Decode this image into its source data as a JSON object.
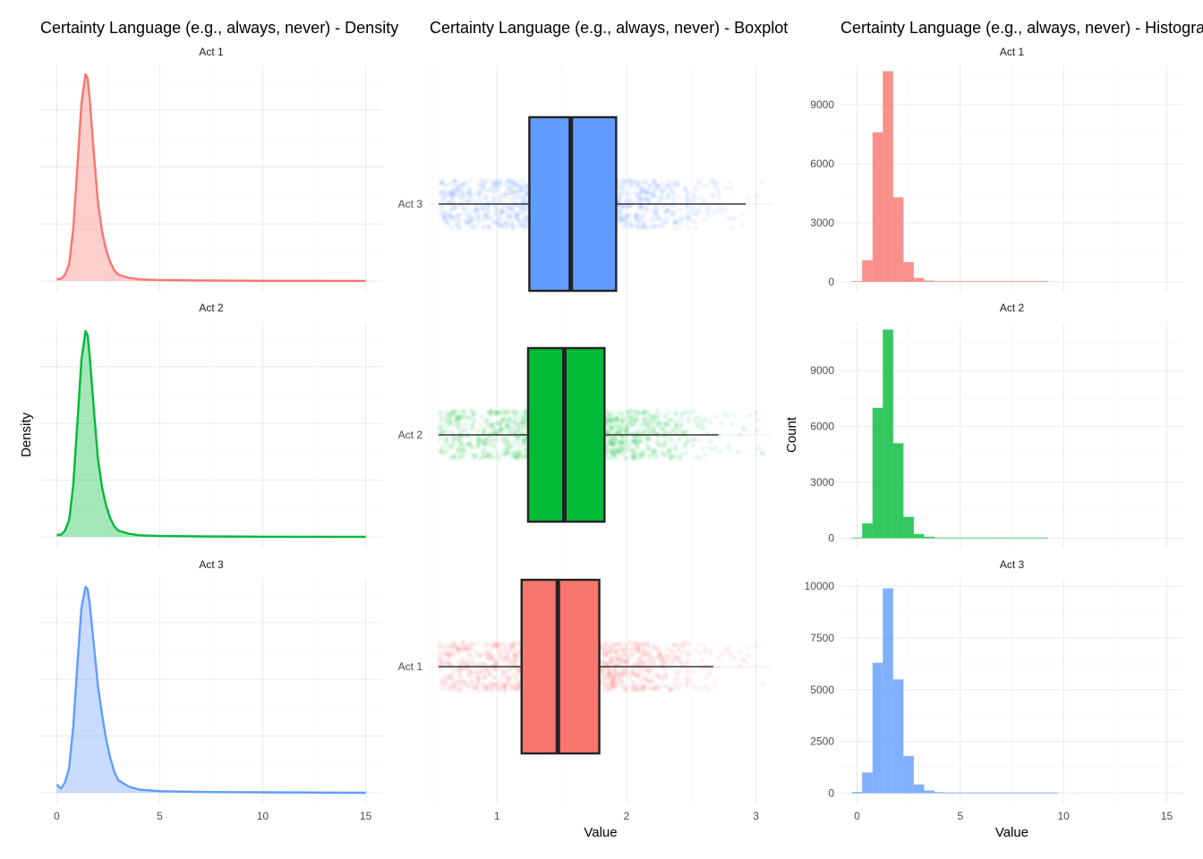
{
  "colors": {
    "act1": "#F8766D",
    "act2": "#00BA38",
    "act3": "#619CFF"
  },
  "titles": {
    "density": "Certainty Language (e.g., always, never) - Density",
    "boxplot": "Certainty Language (e.g., always, never) - Boxplot",
    "histogram": "Certainty Language (e.g., always, never) - Histogram"
  },
  "chart_data": [
    {
      "type": "area",
      "title": "Certainty Language (e.g., always, never) - Density",
      "ylabel": "Density",
      "xlabel": "",
      "xlim": [
        0,
        15
      ],
      "x_ticks": [
        0,
        5,
        10,
        15
      ],
      "x_tick_labels": [
        "0",
        "5",
        "10",
        "15"
      ],
      "grid": true,
      "facets": [
        {
          "label": "Act 1",
          "color": "#F8766D",
          "x": [
            0,
            0.2,
            0.4,
            0.6,
            0.8,
            1.0,
            1.2,
            1.4,
            1.5,
            1.6,
            1.8,
            2.0,
            2.2,
            2.4,
            2.6,
            2.8,
            3.0,
            3.5,
            4,
            5,
            7,
            10,
            15
          ],
          "y": [
            0.01,
            0.01,
            0.03,
            0.08,
            0.25,
            0.55,
            0.86,
            1.0,
            0.98,
            0.88,
            0.62,
            0.38,
            0.24,
            0.15,
            0.09,
            0.05,
            0.03,
            0.015,
            0.008,
            0.004,
            0.002,
            0.001,
            0.0
          ]
        },
        {
          "label": "Act 2",
          "color": "#00BA38",
          "x": [
            0,
            0.2,
            0.4,
            0.6,
            0.8,
            1.0,
            1.2,
            1.4,
            1.5,
            1.6,
            1.8,
            2.0,
            2.2,
            2.4,
            2.6,
            2.8,
            3.0,
            3.5,
            4,
            5,
            7,
            10,
            15
          ],
          "y": [
            0.01,
            0.01,
            0.03,
            0.08,
            0.25,
            0.55,
            0.86,
            1.0,
            0.98,
            0.88,
            0.62,
            0.38,
            0.24,
            0.15,
            0.09,
            0.05,
            0.03,
            0.015,
            0.008,
            0.004,
            0.002,
            0.001,
            0.0
          ]
        },
        {
          "label": "Act 3",
          "color": "#619CFF",
          "x": [
            0,
            0.2,
            0.4,
            0.6,
            0.8,
            1.0,
            1.2,
            1.4,
            1.5,
            1.6,
            1.8,
            2.0,
            2.2,
            2.4,
            2.6,
            2.8,
            3.0,
            3.5,
            4,
            5,
            7,
            10,
            15
          ],
          "y": [
            0.04,
            0.02,
            0.05,
            0.12,
            0.32,
            0.62,
            0.9,
            1.0,
            0.99,
            0.92,
            0.72,
            0.52,
            0.38,
            0.26,
            0.17,
            0.1,
            0.06,
            0.03,
            0.015,
            0.008,
            0.004,
            0.002,
            0.0
          ]
        }
      ]
    },
    {
      "type": "boxplot",
      "title": "Certainty Language (e.g., always, never) - Boxplot",
      "xlabel": "Value",
      "ylabel": "",
      "xlim": [
        0.48,
        3.12
      ],
      "x_ticks": [
        1,
        2,
        3
      ],
      "x_tick_labels": [
        "1",
        "2",
        "3"
      ],
      "categories": [
        "Act 3",
        "Act 2",
        "Act 1"
      ],
      "series": [
        {
          "name": "Act 3",
          "color": "#619CFF",
          "whisker_low": 0.55,
          "q1": 1.25,
          "median": 1.57,
          "q3": 1.92,
          "whisker_high": 2.92,
          "jitter_min": 0.55,
          "jitter_max": 3.07
        },
        {
          "name": "Act 2",
          "color": "#00BA38",
          "whisker_low": 0.55,
          "q1": 1.24,
          "median": 1.52,
          "q3": 1.83,
          "whisker_high": 2.71,
          "jitter_min": 0.55,
          "jitter_max": 3.07
        },
        {
          "name": "Act 1",
          "color": "#F8766D",
          "whisker_low": 0.55,
          "q1": 1.19,
          "median": 1.47,
          "q3": 1.79,
          "whisker_high": 2.67,
          "jitter_min": 0.55,
          "jitter_max": 3.07
        }
      ]
    },
    {
      "type": "bar",
      "title": "Certainty Language (e.g., always, never) - Histogram",
      "xlabel": "Value",
      "ylabel": "Count",
      "xlim": [
        -0.8,
        15.8
      ],
      "x_ticks": [
        0,
        5,
        10,
        15
      ],
      "x_tick_labels": [
        "0",
        "5",
        "10",
        "15"
      ],
      "bin_width": 0.5,
      "bin_centers": [
        0.0,
        0.5,
        1.0,
        1.5,
        2.0,
        2.5,
        3.0,
        3.5,
        4.0,
        4.5,
        5.0,
        5.5,
        6.0,
        6.5,
        7.0,
        7.5,
        8.0,
        8.5,
        9.0,
        9.5,
        10.0
      ],
      "facets": [
        {
          "label": "Act 1",
          "color": "#F8766D",
          "y_ticks": [
            0,
            3000,
            6000,
            9000
          ],
          "y_tick_labels": [
            "0",
            "3000",
            "6000",
            "9000"
          ],
          "ylim": [
            -500,
            11000
          ],
          "counts": [
            30,
            1100,
            7600,
            10700,
            4300,
            1000,
            200,
            60,
            25,
            12,
            6,
            4,
            3,
            2,
            2,
            1,
            1,
            1,
            1,
            0,
            0
          ]
        },
        {
          "label": "Act 2",
          "color": "#00BA38",
          "y_ticks": [
            0,
            3000,
            6000,
            9000
          ],
          "y_tick_labels": [
            "0",
            "3000",
            "6000",
            "9000"
          ],
          "ylim": [
            -500,
            11600
          ],
          "counts": [
            30,
            800,
            7000,
            11200,
            5100,
            1150,
            230,
            80,
            30,
            12,
            6,
            4,
            3,
            2,
            2,
            1,
            1,
            1,
            1,
            0,
            0
          ]
        },
        {
          "label": "Act 3",
          "color": "#619CFF",
          "y_ticks": [
            0,
            2500,
            5000,
            7500,
            10000
          ],
          "y_tick_labels": [
            "0",
            "2500",
            "5000",
            "7500",
            "10000"
          ],
          "ylim": [
            -500,
            10400
          ],
          "counts": [
            60,
            1000,
            6300,
            9900,
            5500,
            1800,
            420,
            130,
            50,
            25,
            12,
            8,
            6,
            4,
            3,
            2,
            2,
            1,
            1,
            1,
            0
          ]
        }
      ]
    }
  ]
}
